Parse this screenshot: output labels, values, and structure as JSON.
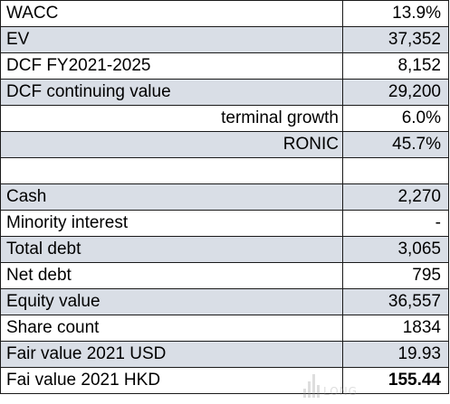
{
  "table": {
    "rows": [
      {
        "label": "WACC",
        "value": "13.9%"
      },
      {
        "label": "EV",
        "value": "37,352"
      },
      {
        "label": "DCF FY2021-2025",
        "value": "8,152"
      },
      {
        "label": "DCF continuing value",
        "value": "29,200"
      },
      {
        "label": "terminal growth",
        "value": "6.0%"
      },
      {
        "label": "RONIC",
        "value": "45.7%"
      },
      {
        "label": "",
        "value": ""
      },
      {
        "label": "Cash",
        "value": "2,270"
      },
      {
        "label": "Minority interest",
        "value": "-"
      },
      {
        "label": "Total debt",
        "value": "3,065"
      },
      {
        "label": "Net debt",
        "value": "795"
      },
      {
        "label": "Equity value",
        "value": "36,557"
      },
      {
        "label": "Share count",
        "value": "1834"
      },
      {
        "label": "Fair value 2021 USD",
        "value": "19.93"
      },
      {
        "label": "Fai value 2021 HKD",
        "value": "155.44"
      }
    ]
  },
  "watermark": {
    "text": "LONG"
  },
  "colors": {
    "shaded_row": "#d9dee6",
    "plain_row": "#ffffff",
    "border": "#1a1a1a"
  }
}
